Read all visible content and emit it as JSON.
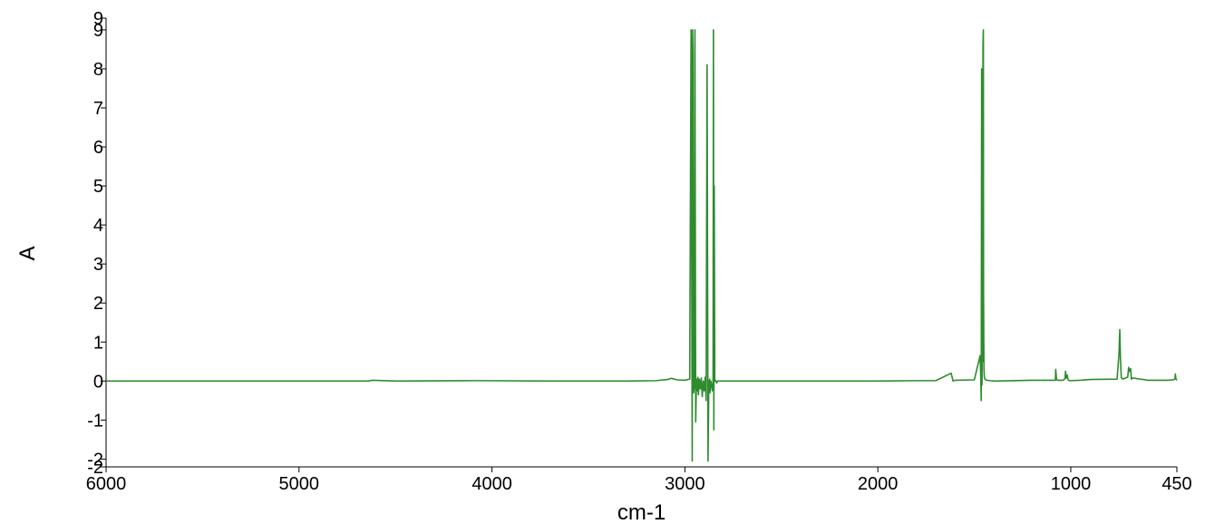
{
  "chart_data": {
    "type": "line",
    "xlabel": "cm-1",
    "ylabel": "A",
    "x_reversed": true,
    "xlim": [
      6000,
      450
    ],
    "ylim": [
      -2.2,
      9.3
    ],
    "grid": false,
    "legend": "none",
    "line_color": "#2e8b2e",
    "x_ticks": [
      {
        "value": 6000,
        "label": "6000"
      },
      {
        "value": 5000,
        "label": "5000"
      },
      {
        "value": 4000,
        "label": "4000"
      },
      {
        "value": 3000,
        "label": "3000"
      },
      {
        "value": 2000,
        "label": "2000"
      },
      {
        "value": 1000,
        "label": "1000"
      },
      {
        "value": 450,
        "label": "450"
      }
    ],
    "y_ticks": [
      {
        "value": 9.3,
        "label": "9"
      },
      {
        "value": 9.0,
        "label": "9"
      },
      {
        "value": 8,
        "label": "8"
      },
      {
        "value": 7,
        "label": "7"
      },
      {
        "value": 6,
        "label": "6"
      },
      {
        "value": 5,
        "label": "5"
      },
      {
        "value": 4,
        "label": "4"
      },
      {
        "value": 3,
        "label": "3"
      },
      {
        "value": 2,
        "label": "2"
      },
      {
        "value": 1,
        "label": "1"
      },
      {
        "value": 0,
        "label": "0"
      },
      {
        "value": -1,
        "label": "-1"
      },
      {
        "value": -2,
        "label": "-2"
      },
      {
        "value": -2.2,
        "label": "-2"
      }
    ],
    "series": [
      {
        "x": [
          6000,
          5500,
          5000,
          4640,
          4620,
          4500,
          4100,
          4050,
          3700,
          3300,
          3150,
          3090,
          3070,
          3040,
          3000,
          2975,
          2968,
          2962,
          2960,
          2958,
          2955,
          2950,
          2948,
          2944,
          2940,
          2936,
          2933,
          2930,
          2925,
          2920,
          2915,
          2910,
          2905,
          2900,
          2895,
          2890,
          2885,
          2880,
          2876,
          2873,
          2872,
          2870,
          2866,
          2862,
          2858,
          2854,
          2852,
          2850,
          2848,
          2845,
          2840,
          2835,
          2830,
          2800,
          2500,
          2000,
          1800,
          1700,
          1620,
          1610,
          1600,
          1500,
          1470,
          1467,
          1464,
          1462,
          1460,
          1458,
          1456,
          1455,
          1453,
          1452,
          1450,
          1448,
          1445,
          1440,
          1435,
          1420,
          1390,
          1200,
          1080,
          1078,
          1074,
          1070,
          1040,
          1030,
          1027,
          1023,
          1018,
          1015,
          1011,
          1008,
          950,
          900,
          760,
          750,
          746,
          742,
          738,
          730,
          705,
          700,
          696,
          690,
          686,
          680,
          600,
          500,
          470,
          460,
          458,
          455,
          450
        ],
        "y": [
          0.0,
          0.0,
          0.0,
          0.0,
          0.02,
          0.0,
          0.01,
          0.01,
          0.0,
          0.0,
          0.01,
          0.04,
          0.07,
          0.03,
          0.02,
          0.05,
          9.0,
          -2.05,
          9.0,
          8.4,
          -0.3,
          -0.1,
          9.0,
          -1.05,
          0.05,
          -0.25,
          0.1,
          -0.35,
          0.05,
          -0.2,
          0.08,
          -0.4,
          0.0,
          -0.25,
          0.1,
          -0.5,
          8.1,
          -2.05,
          0.0,
          -0.2,
          0.05,
          -0.3,
          0.0,
          -0.1,
          -0.25,
          0.02,
          9.0,
          -1.25,
          5.0,
          0.0,
          0.01,
          -0.05,
          0.0,
          0.0,
          0.0,
          0.0,
          0.01,
          0.01,
          0.2,
          0.0,
          0.02,
          0.03,
          0.65,
          0.2,
          -0.5,
          8.0,
          -0.1,
          6.2,
          0.5,
          8.6,
          9.0,
          2.2,
          0.3,
          0.1,
          0.05,
          0.03,
          0.02,
          0.01,
          0.0,
          0.02,
          0.02,
          0.3,
          0.05,
          0.02,
          0.02,
          0.06,
          0.25,
          0.08,
          0.15,
          0.05,
          0.02,
          0.01,
          0.02,
          0.04,
          0.05,
          0.7,
          1.32,
          0.5,
          0.08,
          0.05,
          0.1,
          0.35,
          0.25,
          0.32,
          0.05,
          0.08,
          0.02,
          0.02,
          0.03,
          0.05,
          0.18,
          0.05,
          0.02
        ]
      }
    ]
  }
}
